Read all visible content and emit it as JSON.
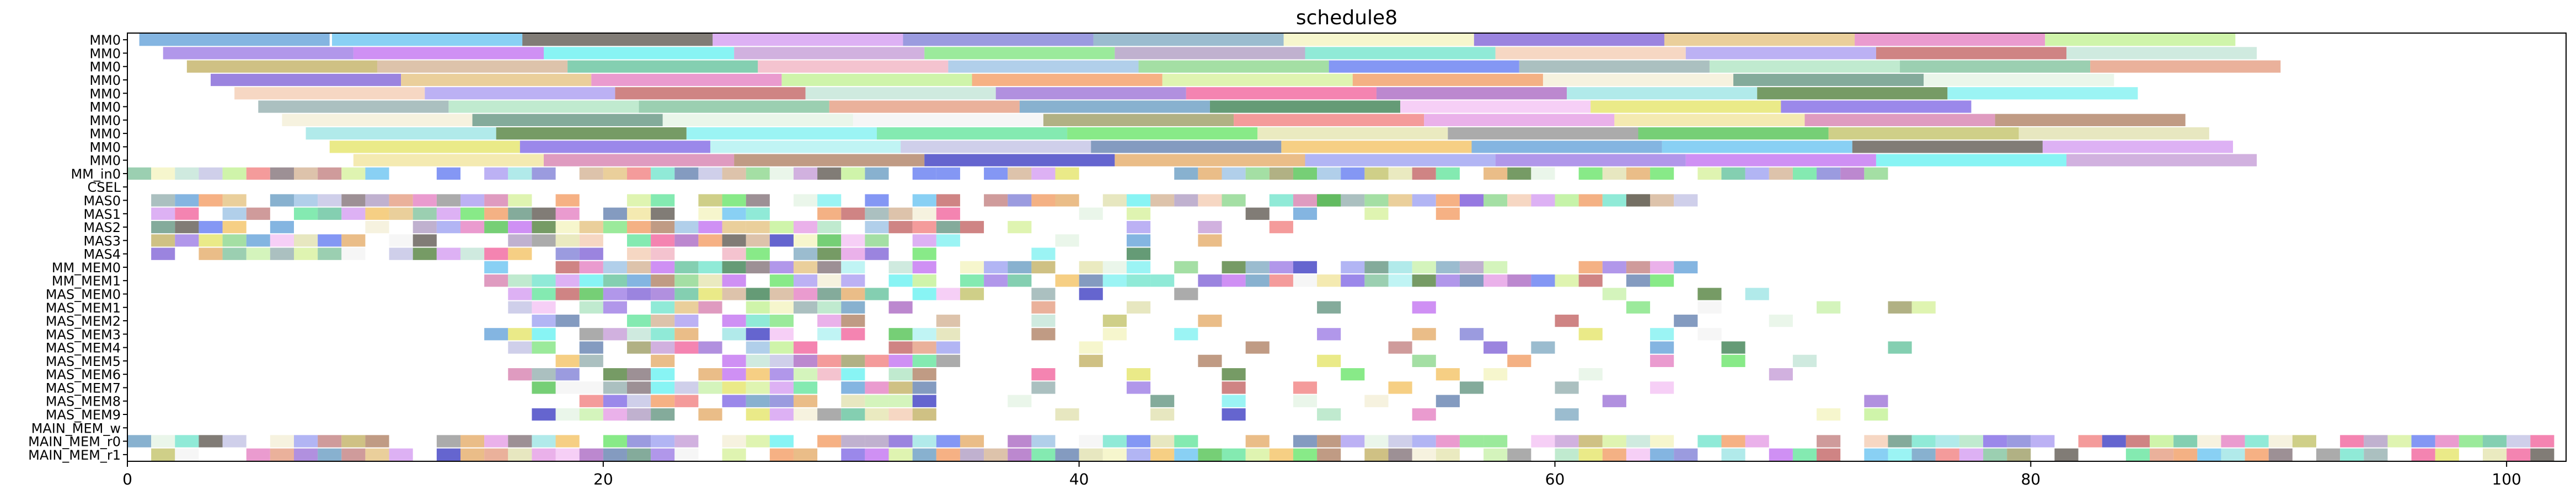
{
  "chart_data": {
    "type": "gantt",
    "title": "schedule8",
    "xlabel": "",
    "ylabel": "",
    "xlim": [
      0,
      102.5
    ],
    "x_ticks": [
      0,
      20,
      40,
      60,
      80,
      100
    ],
    "grid": false,
    "legend": "none",
    "rows": [
      "MM0",
      "MM0",
      "MM0",
      "MM0",
      "MM0",
      "MM0",
      "MM0",
      "MM0",
      "MM0",
      "MM0",
      "MM_in0",
      "CSEL",
      "MAS0",
      "MAS1",
      "MAS2",
      "MAS3",
      "MAS4",
      "MM_MEM0",
      "MM_MEM1",
      "MAS_MEM0",
      "MAS_MEM1",
      "MAS_MEM2",
      "MAS_MEM3",
      "MAS_MEM4",
      "MAS_MEM5",
      "MAS_MEM6",
      "MAS_MEM7",
      "MAS_MEM8",
      "MAS_MEM9",
      "MAIN_MEM_w",
      "MAIN_MEM_r0",
      "MAIN_MEM_r1"
    ],
    "palette": [
      "#6fa8dc",
      "#e6b273",
      "#e3e3b5",
      "#74c8f2",
      "#a5a8f2",
      "#8c7d83",
      "#6b655e",
      "#a385e6",
      "#cdf2b0",
      "#d7a3f2",
      "#c77df2",
      "#c78a8a",
      "#8a8ad9",
      "#73f2f2",
      "#c7b66f",
      "#8ab0c7",
      "#c9a3d9",
      "#d7b89c",
      "#f5f5c4",
      "#8ae68a",
      "#6fc7a3",
      "#8a6fd9",
      "#b5a3c7",
      "#f2b8c7",
      "#e6c78a",
      "#7de6d0",
      "#a3c7e6",
      "#e68ac7",
      "#f5d0b8",
      "#94d994",
      "#c7f29b",
      "#b0a3f2",
      "#6f85f2",
      "#f5a36f",
      "#c76f6f",
      "#9cb5b5",
      "#d9f2a3",
      "#c7e6d9",
      "#b5e6c7",
      "#f2a36f",
      "#a37dd9",
      "#8ac7a3",
      "#f5f0d9",
      "#f26fa3",
      "#e6a38a",
      "#6f9c8a",
      "#b073c7",
      "#73a3c7",
      "#e6f5e6",
      "#a3e6e6",
      "#4a8a5e",
      "#f5f5f5",
      "#5e8a4a",
      "#f5c7f5",
      "#a3a36f",
      "#8af2f2",
      "#e6e673",
      "#f28a8a",
      "#6fe6a3",
      "#8a73e6",
      "#e6a3e6",
      "#73e673",
      "#b5f2f2",
      "#f2e6a3",
      "#e6e6b5",
      "#c7c7e6",
      "#d98ab5",
      "#9c9c9c",
      "#6f8ab5",
      "#b58a6f",
      "#5ec75e",
      "#f5c76f",
      "#4a4ac7",
      "#c7c773"
    ],
    "mm0_lanes": [
      [
        0.5,
        8.6,
        16.6,
        24.6,
        32.6,
        40.6,
        48.6,
        56.6,
        64.6,
        72.6,
        80.6
      ],
      [
        1.5,
        9.5,
        17.5,
        25.5,
        33.5,
        41.5,
        49.5,
        57.5,
        65.5,
        73.5,
        81.5
      ],
      [
        2.5,
        10.5,
        18.5,
        26.5,
        34.5,
        42.5,
        50.5,
        58.5,
        66.5,
        74.5,
        82.5
      ],
      [
        3.5,
        11.5,
        19.5,
        27.5,
        35.5,
        43.5,
        51.5,
        59.5,
        67.5,
        75.5
      ],
      [
        4.5,
        12.5,
        20.5,
        28.5,
        36.5,
        44.5,
        52.5,
        60.5,
        68.5,
        76.5
      ],
      [
        5.5,
        13.5,
        21.5,
        29.5,
        37.5,
        45.5,
        53.5,
        61.5,
        69.5
      ],
      [
        6.5,
        14.5,
        22.5,
        30.5,
        38.5,
        46.5,
        54.5,
        62.5,
        70.5,
        78.5
      ],
      [
        7.5,
        15.5,
        23.5,
        31.5,
        39.5,
        47.5,
        55.5,
        63.5,
        71.5,
        79.5
      ],
      [
        8.5,
        16.5,
        24.5,
        32.5,
        40.5,
        48.5,
        56.5,
        64.5,
        72.5,
        80.5
      ],
      [
        9.5,
        17.5,
        25.5,
        33.5,
        41.5,
        49.5,
        57.5,
        65.5,
        73.5,
        81.5
      ]
    ],
    "short_rows": {
      "MM_in0": [
        [
          0,
          74
        ]
      ],
      "CSEL": [],
      "MAS0": [
        [
          1,
          67
        ],
        45,
        50,
        56,
        60,
        63
      ],
      "MAS1": [
        [
          1,
          35
        ],
        40,
        42,
        47,
        49,
        52,
        55
      ],
      "MAS2": [
        [
          1,
          38
        ],
        42,
        45,
        48
      ],
      "MAS3": [
        [
          1,
          36
        ],
        39,
        42,
        45
      ],
      "MAS4": [
        [
          1,
          34
        ],
        38,
        42
      ],
      "MM_MEM0": [
        [
          15,
          66
        ],
        47,
        52,
        54,
        56
      ],
      "MM_MEM1": [
        [
          15,
          66
        ]
      ],
      "MAS_MEM0": [
        [
          16,
          36
        ],
        38,
        40,
        44,
        62,
        66,
        68
      ],
      "MAS_MEM1": [
        [
          16,
          34
        ],
        38,
        42,
        50,
        54,
        63,
        66,
        71,
        74,
        75
      ],
      "MAS_MEM2": [
        [
          15,
          35
        ],
        38,
        41,
        45,
        60,
        65,
        69
      ],
      "MAS_MEM3": [
        [
          15,
          35
        ],
        38,
        41,
        44,
        50,
        54,
        56,
        61,
        64,
        66
      ],
      "MAS_MEM4": [
        [
          16,
          36
        ],
        40,
        47,
        53,
        57,
        59,
        64,
        67,
        74
      ],
      "MAS_MEM5": [
        [
          16,
          35
        ],
        40,
        45,
        50,
        54,
        58,
        64,
        67,
        70
      ],
      "MAS_MEM6": [
        [
          16,
          34
        ],
        38,
        42,
        46,
        51,
        55,
        57,
        61,
        69
      ],
      "MAS_MEM7": [
        [
          16,
          34
        ],
        38,
        42,
        46,
        49,
        53,
        56,
        60,
        64
      ],
      "MAS_MEM8": [
        [
          18,
          34
        ],
        37,
        43,
        46,
        49,
        52,
        55,
        62,
        73
      ],
      "MAS_MEM9": [
        [
          16,
          34
        ],
        39,
        43,
        46,
        50,
        54,
        60,
        71,
        73
      ],
      "MAIN_MEM_w": [],
      "MAIN_MEM_r0": [
        [
          0,
          102
        ]
      ],
      "MAIN_MEM_r1": [
        [
          0,
          102
        ]
      ]
    }
  }
}
